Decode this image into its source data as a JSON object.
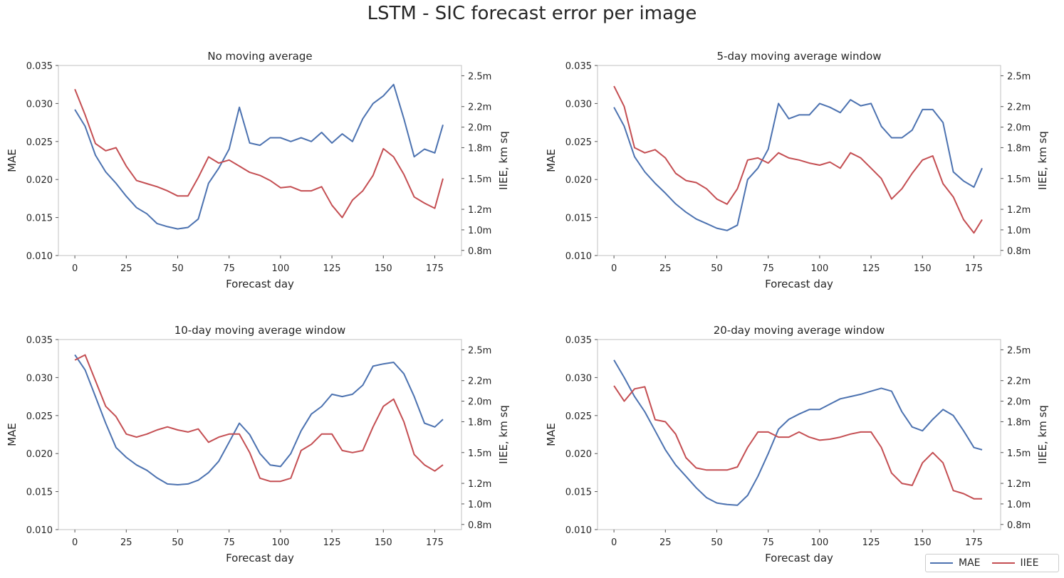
{
  "figure": {
    "title": "LSTM - SIC forecast error per image",
    "legend": {
      "placement": "lower-right",
      "entries": [
        {
          "label": "MAE",
          "color": "#4c72b0"
        },
        {
          "label": "IIEE",
          "color": "#c44e52"
        }
      ]
    }
  },
  "chart_data": [
    {
      "type": "line",
      "title": "No moving average",
      "xlabel": "Forecast day",
      "ylabel": "MAE",
      "y2label": "IIEE, km sq",
      "xlim": [
        -8,
        188
      ],
      "ylim": [
        0.01,
        0.035
      ],
      "y2lim": [
        0.75,
        2.6
      ],
      "xticks": [
        "0",
        "25",
        "50",
        "75",
        "100",
        "125",
        "150",
        "175"
      ],
      "yticks": [
        "0.010",
        "0.015",
        "0.020",
        "0.025",
        "0.030",
        "0.035"
      ],
      "y2ticks": [
        "0.8m",
        "1.0m",
        "1.2m",
        "1.5m",
        "1.8m",
        "2.0m",
        "2.2m",
        "2.5m"
      ],
      "grid": false,
      "series": [
        {
          "name": "MAE",
          "axis": "left",
          "color": "#4c72b0",
          "x": [
            0,
            5,
            10,
            15,
            20,
            25,
            30,
            35,
            40,
            45,
            50,
            55,
            60,
            65,
            70,
            75,
            80,
            85,
            90,
            95,
            100,
            105,
            110,
            115,
            120,
            125,
            130,
            135,
            140,
            145,
            150,
            155,
            160,
            165,
            170,
            175,
            179
          ],
          "y": [
            0.0292,
            0.027,
            0.0232,
            0.021,
            0.0195,
            0.0178,
            0.0163,
            0.0155,
            0.0142,
            0.0138,
            0.0135,
            0.0137,
            0.0148,
            0.0195,
            0.0215,
            0.024,
            0.0295,
            0.0248,
            0.0245,
            0.0255,
            0.0255,
            0.025,
            0.0255,
            0.025,
            0.0262,
            0.0248,
            0.026,
            0.025,
            0.028,
            0.03,
            0.031,
            0.0325,
            0.028,
            0.023,
            0.024,
            0.0235,
            0.0272
          ]
        },
        {
          "name": "IIEE",
          "axis": "right",
          "color": "#c44e52",
          "x": [
            0,
            5,
            10,
            15,
            20,
            25,
            30,
            35,
            40,
            45,
            50,
            55,
            60,
            65,
            70,
            75,
            80,
            85,
            90,
            95,
            100,
            105,
            110,
            115,
            120,
            125,
            130,
            135,
            140,
            145,
            150,
            155,
            160,
            165,
            170,
            175,
            179
          ],
          "y": [
            2.37,
            2.12,
            1.84,
            1.77,
            1.8,
            1.62,
            1.48,
            1.45,
            1.42,
            1.38,
            1.33,
            1.33,
            1.51,
            1.71,
            1.65,
            1.68,
            1.62,
            1.56,
            1.53,
            1.48,
            1.41,
            1.42,
            1.38,
            1.38,
            1.42,
            1.24,
            1.12,
            1.29,
            1.38,
            1.53,
            1.79,
            1.71,
            1.54,
            1.32,
            1.26,
            1.21,
            1.5
          ]
        }
      ]
    },
    {
      "type": "line",
      "title": "5-day moving average window",
      "xlabel": "Forecast day",
      "ylabel": "MAE",
      "y2label": "IIEE, km sq",
      "xlim": [
        -8,
        188
      ],
      "ylim": [
        0.01,
        0.035
      ],
      "y2lim": [
        0.75,
        2.6
      ],
      "xticks": [
        "0",
        "25",
        "50",
        "75",
        "100",
        "125",
        "150",
        "175"
      ],
      "yticks": [
        "0.010",
        "0.015",
        "0.020",
        "0.025",
        "0.030",
        "0.035"
      ],
      "y2ticks": [
        "0.8m",
        "1.0m",
        "1.2m",
        "1.5m",
        "1.8m",
        "2.0m",
        "2.2m",
        "2.5m"
      ],
      "grid": false,
      "series": [
        {
          "name": "MAE",
          "axis": "left",
          "color": "#4c72b0",
          "x": [
            0,
            5,
            10,
            15,
            20,
            25,
            30,
            35,
            40,
            45,
            50,
            55,
            60,
            65,
            70,
            75,
            80,
            85,
            90,
            95,
            100,
            105,
            110,
            115,
            120,
            125,
            130,
            135,
            140,
            145,
            150,
            155,
            160,
            165,
            170,
            175,
            179
          ],
          "y": [
            0.0295,
            0.027,
            0.023,
            0.021,
            0.0195,
            0.0182,
            0.0168,
            0.0157,
            0.0148,
            0.0142,
            0.0136,
            0.0133,
            0.014,
            0.02,
            0.0215,
            0.024,
            0.03,
            0.028,
            0.0285,
            0.0285,
            0.03,
            0.0295,
            0.0288,
            0.0305,
            0.0297,
            0.03,
            0.027,
            0.0255,
            0.0255,
            0.0265,
            0.0292,
            0.0292,
            0.0275,
            0.021,
            0.0198,
            0.019,
            0.0215
          ]
        },
        {
          "name": "IIEE",
          "axis": "right",
          "color": "#c44e52",
          "x": [
            0,
            5,
            10,
            15,
            20,
            25,
            30,
            35,
            40,
            45,
            50,
            55,
            60,
            65,
            70,
            75,
            80,
            85,
            90,
            95,
            100,
            105,
            110,
            115,
            120,
            125,
            130,
            135,
            140,
            145,
            150,
            155,
            160,
            165,
            170,
            175,
            179
          ],
          "y": [
            2.4,
            2.2,
            1.8,
            1.75,
            1.78,
            1.7,
            1.55,
            1.48,
            1.46,
            1.4,
            1.3,
            1.25,
            1.4,
            1.68,
            1.7,
            1.65,
            1.75,
            1.7,
            1.68,
            1.65,
            1.63,
            1.66,
            1.6,
            1.75,
            1.7,
            1.6,
            1.5,
            1.3,
            1.4,
            1.55,
            1.68,
            1.72,
            1.45,
            1.32,
            1.1,
            0.97,
            1.1
          ]
        }
      ]
    },
    {
      "type": "line",
      "title": "10-day moving average window",
      "xlabel": "Forecast day",
      "ylabel": "MAE",
      "y2label": "IIEE, km sq",
      "xlim": [
        -8,
        188
      ],
      "ylim": [
        0.01,
        0.035
      ],
      "y2lim": [
        0.75,
        2.6
      ],
      "xticks": [
        "0",
        "25",
        "50",
        "75",
        "100",
        "125",
        "150",
        "175"
      ],
      "yticks": [
        "0.010",
        "0.015",
        "0.020",
        "0.025",
        "0.030",
        "0.035"
      ],
      "y2ticks": [
        "0.8m",
        "1.0m",
        "1.2m",
        "1.5m",
        "1.8m",
        "2.0m",
        "2.2m",
        "2.5m"
      ],
      "grid": false,
      "series": [
        {
          "name": "MAE",
          "axis": "left",
          "color": "#4c72b0",
          "x": [
            0,
            5,
            10,
            15,
            20,
            25,
            30,
            35,
            40,
            45,
            50,
            55,
            60,
            65,
            70,
            75,
            80,
            85,
            90,
            95,
            100,
            105,
            110,
            115,
            120,
            125,
            130,
            135,
            140,
            145,
            150,
            155,
            160,
            165,
            170,
            175,
            179
          ],
          "y": [
            0.033,
            0.031,
            0.0275,
            0.024,
            0.0208,
            0.0195,
            0.0185,
            0.0178,
            0.0168,
            0.016,
            0.0159,
            0.016,
            0.0165,
            0.0175,
            0.019,
            0.0215,
            0.024,
            0.0225,
            0.02,
            0.0185,
            0.0183,
            0.02,
            0.023,
            0.0252,
            0.0262,
            0.0278,
            0.0275,
            0.0278,
            0.029,
            0.0315,
            0.0318,
            0.032,
            0.0305,
            0.0275,
            0.024,
            0.0235,
            0.0245
          ]
        },
        {
          "name": "IIEE",
          "axis": "right",
          "color": "#c44e52",
          "x": [
            0,
            5,
            10,
            15,
            20,
            25,
            30,
            35,
            40,
            45,
            50,
            55,
            60,
            65,
            70,
            75,
            80,
            85,
            90,
            95,
            100,
            105,
            110,
            115,
            120,
            125,
            130,
            135,
            140,
            145,
            150,
            155,
            160,
            165,
            170,
            175,
            179
          ],
          "y": [
            2.4,
            2.45,
            2.2,
            1.95,
            1.85,
            1.68,
            1.65,
            1.68,
            1.72,
            1.75,
            1.72,
            1.7,
            1.73,
            1.6,
            1.65,
            1.68,
            1.68,
            1.5,
            1.25,
            1.22,
            1.22,
            1.25,
            1.52,
            1.58,
            1.68,
            1.68,
            1.52,
            1.5,
            1.52,
            1.75,
            1.95,
            2.02,
            1.8,
            1.48,
            1.38,
            1.32,
            1.38
          ]
        }
      ]
    },
    {
      "type": "line",
      "title": "20-day moving average window",
      "xlabel": "Forecast day",
      "ylabel": "MAE",
      "y2label": "IIEE, km sq",
      "xlim": [
        -8,
        188
      ],
      "ylim": [
        0.01,
        0.035
      ],
      "y2lim": [
        0.75,
        2.6
      ],
      "xticks": [
        "0",
        "25",
        "50",
        "75",
        "100",
        "125",
        "150",
        "175"
      ],
      "yticks": [
        "0.010",
        "0.015",
        "0.020",
        "0.025",
        "0.030",
        "0.035"
      ],
      "y2ticks": [
        "0.8m",
        "1.0m",
        "1.2m",
        "1.5m",
        "1.8m",
        "2.0m",
        "2.2m",
        "2.5m"
      ],
      "grid": false,
      "series": [
        {
          "name": "MAE",
          "axis": "left",
          "color": "#4c72b0",
          "x": [
            0,
            5,
            10,
            15,
            20,
            25,
            30,
            35,
            40,
            45,
            50,
            55,
            60,
            65,
            70,
            75,
            80,
            85,
            90,
            95,
            100,
            105,
            110,
            115,
            120,
            125,
            130,
            135,
            140,
            145,
            150,
            155,
            160,
            165,
            170,
            175,
            179
          ],
          "y": [
            0.0323,
            0.03,
            0.0275,
            0.0255,
            0.023,
            0.0205,
            0.0185,
            0.017,
            0.0155,
            0.0142,
            0.0135,
            0.0133,
            0.0132,
            0.0145,
            0.017,
            0.02,
            0.0232,
            0.0245,
            0.0252,
            0.0258,
            0.0258,
            0.0265,
            0.0272,
            0.0275,
            0.0278,
            0.0282,
            0.0286,
            0.0282,
            0.0255,
            0.0235,
            0.023,
            0.0245,
            0.0258,
            0.025,
            0.023,
            0.0208,
            0.0205
          ]
        },
        {
          "name": "IIEE",
          "axis": "right",
          "color": "#c44e52",
          "x": [
            0,
            5,
            10,
            15,
            20,
            25,
            30,
            35,
            40,
            45,
            50,
            55,
            60,
            65,
            70,
            75,
            80,
            85,
            90,
            95,
            100,
            105,
            110,
            115,
            120,
            125,
            130,
            135,
            140,
            145,
            150,
            155,
            160,
            165,
            170,
            175,
            179
          ],
          "y": [
            2.15,
            2.0,
            2.12,
            2.14,
            1.82,
            1.8,
            1.68,
            1.45,
            1.35,
            1.33,
            1.33,
            1.33,
            1.36,
            1.55,
            1.7,
            1.7,
            1.65,
            1.65,
            1.7,
            1.65,
            1.62,
            1.63,
            1.65,
            1.68,
            1.7,
            1.7,
            1.55,
            1.3,
            1.2,
            1.18,
            1.4,
            1.5,
            1.4,
            1.13,
            1.1,
            1.05,
            1.05
          ]
        }
      ]
    }
  ]
}
